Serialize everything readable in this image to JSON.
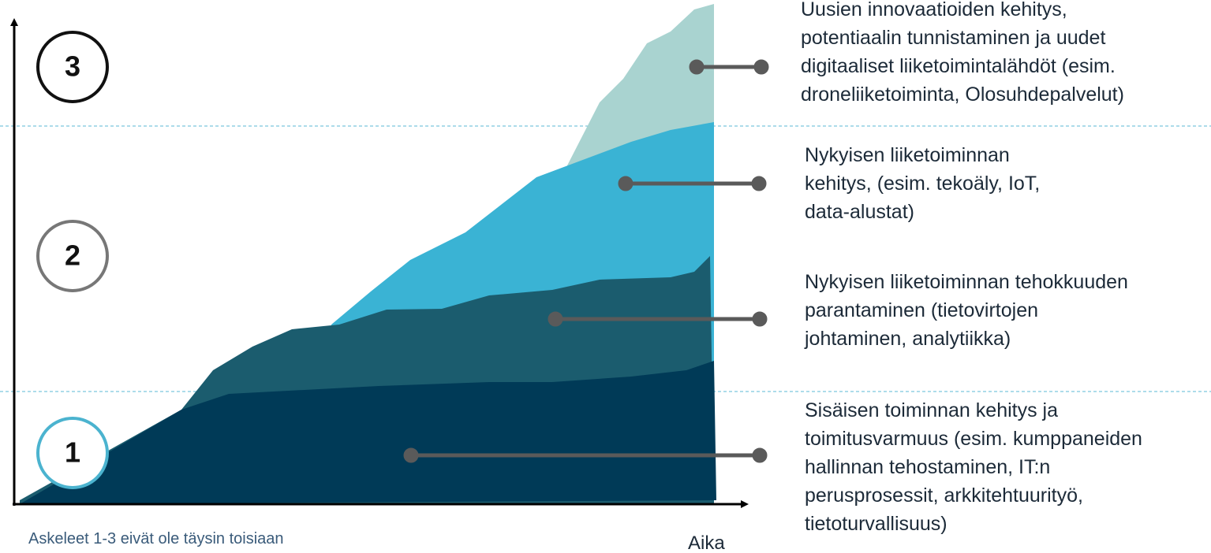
{
  "steps": [
    {
      "number": "3",
      "lines": [
        "Uusien innovaatioiden kehitys,",
        "potentiaalin tunnistaminen  ja uudet",
        "digitaaliset liiketoimintalähdöt (esim.",
        "droneliiketoiminta, Olosuhdepalvelut)"
      ]
    },
    {
      "number": "2",
      "lines": [
        "Nykyisen liiketoiminnan",
        "kehitys, (esim. tekoäly, IoT,",
        "data-alustat)"
      ]
    },
    {
      "lines": [
        "Nykyisen liiketoiminnan  tehokkuuden",
        "parantaminen (tietovirtojen",
        "johtaminen, analytiikka)"
      ]
    },
    {
      "number": "1",
      "lines": [
        "Sisäisen toiminnan kehitys ja",
        "toimitusvarmuus (esim. kumppaneiden",
        "hallinnan tehostaminen, IT:n",
        "perusprosessit, arkkitehtuurityö,",
        "tietoturvallisuus)"
      ]
    }
  ],
  "footnote": "Askeleet 1-3 eivät ole täysin toisiaan",
  "x_axis_label": "Aika"
}
